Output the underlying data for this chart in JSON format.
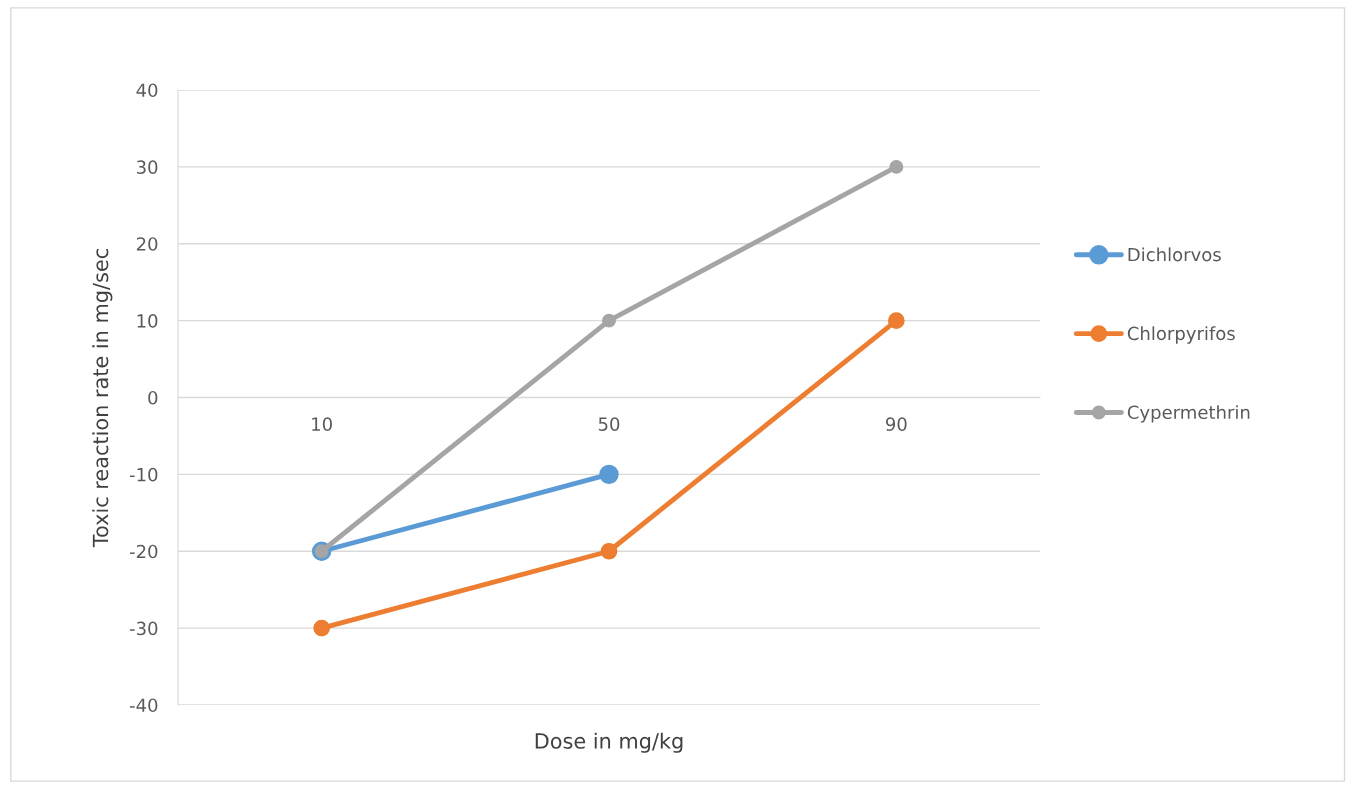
{
  "chart_data": {
    "type": "line",
    "xlabel": "Dose in mg/kg",
    "ylabel": "Toxic reaction rate in mg/sec",
    "categories": [
      "10",
      "50",
      "90"
    ],
    "series": [
      {
        "name": "Dichlorvos",
        "color": "#5b9bd5",
        "values": [
          -20,
          -10,
          null
        ]
      },
      {
        "name": "Chlorpyrifos",
        "color": "#ed7d31",
        "values": [
          -30,
          -20,
          10
        ]
      },
      {
        "name": "Cypermethrin",
        "color": "#a5a5a5",
        "values": [
          -20,
          10,
          30
        ]
      }
    ],
    "ylim": [
      -40,
      40
    ],
    "yticks": [
      -40,
      -30,
      -20,
      -10,
      0,
      10,
      20,
      30,
      40
    ],
    "grid": "y",
    "legend": "right",
    "marker": "circle",
    "line_style": "solid"
  }
}
